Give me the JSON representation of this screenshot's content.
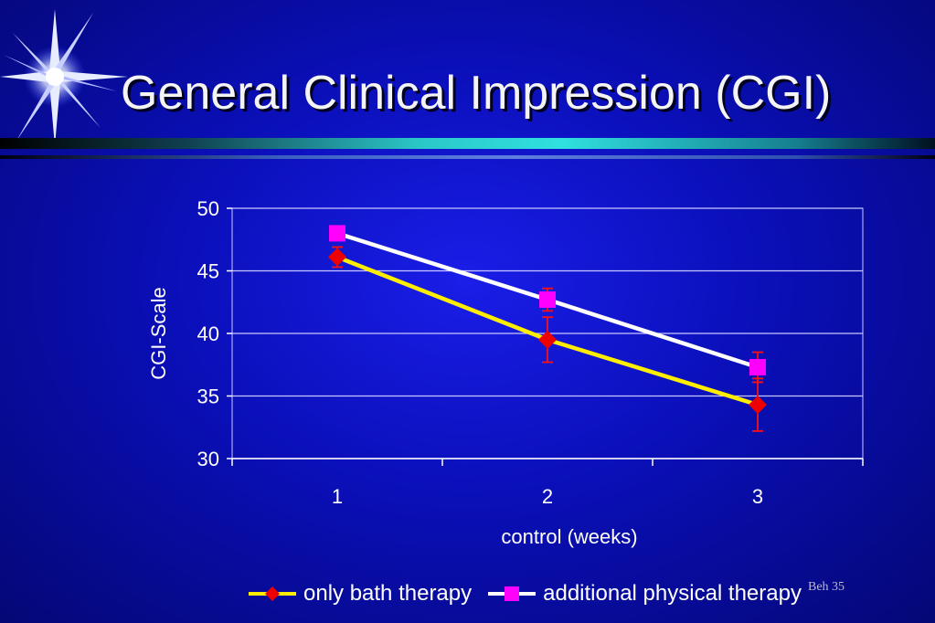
{
  "slide": {
    "title": "General Clinical Impression (CGI)",
    "footer": "Beh 35"
  },
  "colors": {
    "series1": "#ffee00",
    "series1_marker": "#ee0000",
    "series2": "#ffffff",
    "series2_marker": "#ff00ff",
    "error_bar": "#ff1010",
    "grid": "#c8c8ff",
    "text": "#ffffff"
  },
  "chart_data": {
    "type": "line",
    "title": "",
    "xlabel": "control (weeks)",
    "ylabel": "CGI-Scale",
    "categories": [
      "1",
      "2",
      "3"
    ],
    "ylim": [
      30,
      50
    ],
    "yticks": [
      "30",
      "35",
      "40",
      "45",
      "50"
    ],
    "grid": true,
    "legend_position": "bottom",
    "series": [
      {
        "name": "only bath therapy",
        "values": [
          46.1,
          39.5,
          34.3
        ],
        "error": [
          0.8,
          1.8,
          2.1
        ],
        "marker": "diamond"
      },
      {
        "name": "additional physical therapy",
        "values": [
          48.0,
          42.7,
          37.3
        ],
        "error": [
          0.4,
          0.9,
          1.2
        ],
        "marker": "square"
      }
    ]
  }
}
